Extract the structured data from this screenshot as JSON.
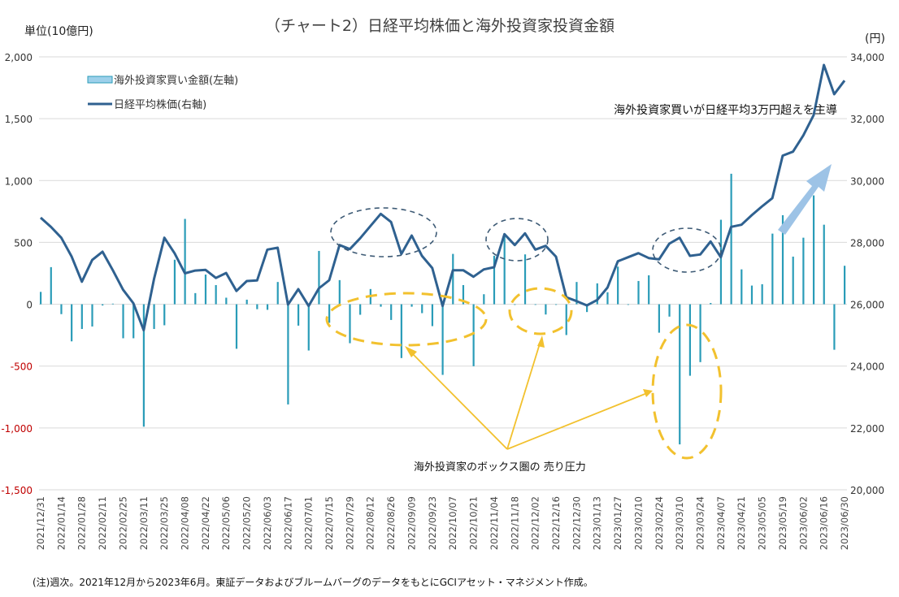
{
  "chart_data": {
    "type": "bar+line",
    "title": "（チャート2）日経平均株価と海外投資家投資金額",
    "left_axis_label": "単位(10億円)",
    "right_axis_label": "(円)",
    "left_ylim": [
      -1500,
      2000
    ],
    "left_ticks": [
      "2,000",
      "1,500",
      "1,000",
      "500",
      "0",
      "-500",
      "-1,000",
      "-1,500"
    ],
    "right_ylim": [
      20000,
      34000
    ],
    "right_ticks": [
      "34,000",
      "32,000",
      "30,000",
      "28,000",
      "26,000",
      "24,000",
      "22,000",
      "20,000"
    ],
    "grid": true,
    "legend_placement": "top-left",
    "x_tick_labels": [
      "2021/12/31",
      "2022/01/14",
      "2022/01/28",
      "2022/02/11",
      "2022/02/25",
      "2022/03/11",
      "2022/03/25",
      "2022/04/08",
      "2022/04/22",
      "2022/05/06",
      "2022/05/20",
      "2022/06/03",
      "2022/06/17",
      "2022/07/01",
      "2022/07/15",
      "2022/07/29",
      "2022/08/12",
      "2022/08/26",
      "2022/09/09",
      "2022/09/23",
      "2022/10/07",
      "2022/10/21",
      "2022/11/04",
      "2022/11/18",
      "2022/12/02",
      "2022/12/16",
      "2022/12/30",
      "2023/01/13",
      "2023/01/27",
      "2023/02/10",
      "2023/02/24",
      "2023/03/10",
      "2023/03/24",
      "2023/04/07",
      "2023/04/21",
      "2023/05/05",
      "2023/05/19",
      "2023/06/02",
      "2023/06/16",
      "2023/06/30"
    ],
    "series": [
      {
        "name": "海外投資家買い金額(左軸)",
        "type": "bar",
        "axis": "left",
        "color": "#2a9cb8",
        "values": [
          100,
          300,
          -80,
          -300,
          -200,
          -180,
          -10,
          5,
          -275,
          -275,
          -990,
          -200,
          -170,
          360,
          690,
          90,
          240,
          155,
          53,
          -360,
          37,
          -40,
          -45,
          180,
          -810,
          -173,
          -374,
          431,
          -150,
          195,
          -315,
          -85,
          123,
          -20,
          -127,
          -435,
          -20,
          -72,
          -177,
          -571,
          407,
          155,
          -501,
          81,
          392,
          567,
          -5,
          403,
          -5,
          -83,
          -5,
          -249,
          180,
          -63,
          169,
          97,
          304,
          -5,
          188,
          234,
          -230,
          -100,
          -1133,
          -578,
          -468,
          10,
          683,
          1055,
          282,
          151,
          162,
          571,
          720,
          385,
          538,
          880,
          643,
          -368,
          311
        ]
      },
      {
        "name": "日経平均株価(右軸)",
        "type": "line",
        "axis": "right",
        "color": "#2f6190",
        "values": [
          28800,
          28500,
          28150,
          27550,
          26730,
          27430,
          27700,
          27100,
          26470,
          26030,
          25160,
          26820,
          28150,
          27650,
          27000,
          27090,
          27110,
          26850,
          27010,
          26430,
          26750,
          26770,
          27768,
          27828,
          25990,
          26488,
          25945,
          26515,
          26778,
          27915,
          27784,
          28135,
          28529,
          28923,
          28660,
          27626,
          28222,
          27565,
          27171,
          25945,
          27100,
          27100,
          26890,
          27127,
          27198,
          28267,
          27915,
          28293,
          27768,
          27889,
          27539,
          26226,
          26102,
          25963,
          26139,
          26541,
          27390,
          27521,
          27652,
          27495,
          27452,
          27960,
          28151,
          27565,
          27610,
          28030,
          27521,
          28503,
          28572,
          28880,
          29168,
          29431,
          30805,
          30936,
          31461,
          32118,
          33738,
          32793,
          33232
        ]
      }
    ],
    "annotations": {
      "box_selling": "海外投資家のボックス圏の 売り圧力",
      "breakout": "海外投資家買いが日経平均3万円超えを主導"
    },
    "colors": {
      "negative_tick": "#c00000",
      "highlight_ellipse": "#f2c12e",
      "range_ellipse": "#3d5a75",
      "trend_arrow": "#9dc3e6"
    }
  },
  "footnote": "(注)週次。2021年12月から2023年6月。東証データおよびブルームバーグのデータをもとにGCIアセット・マネジメント作成。"
}
